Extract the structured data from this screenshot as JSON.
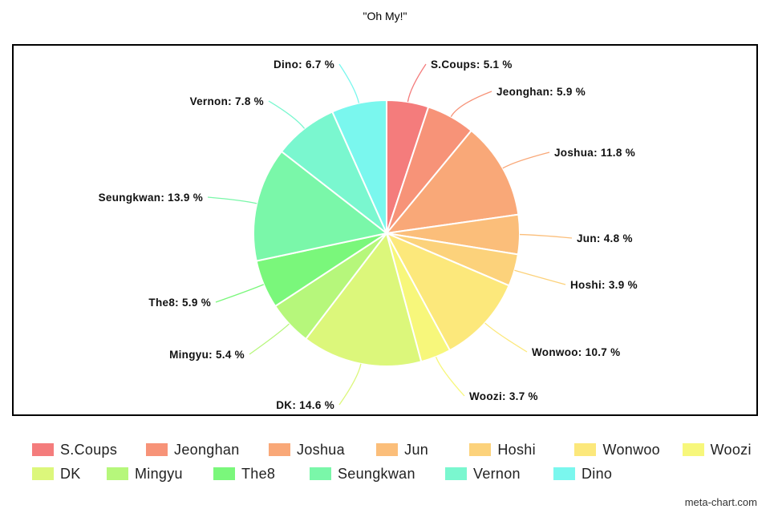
{
  "chart_data": {
    "type": "pie",
    "title": "\"Oh My!\"",
    "slices": [
      {
        "name": "S.Coups",
        "value": 5.1,
        "label": "S.Coups: 5.1 %",
        "color": "#f47c7c"
      },
      {
        "name": "Jeonghan",
        "value": 5.9,
        "label": "Jeonghan: 5.9 %",
        "color": "#f79378"
      },
      {
        "name": "Joshua",
        "value": 11.8,
        "label": "Joshua: 11.8 %",
        "color": "#f9a878"
      },
      {
        "name": "Jun",
        "value": 4.8,
        "label": "Jun: 4.8 %",
        "color": "#fbbe7a"
      },
      {
        "name": "Hoshi",
        "value": 3.9,
        "label": "Hoshi: 3.9 %",
        "color": "#fcd27b"
      },
      {
        "name": "Wonwoo",
        "value": 10.7,
        "label": "Wonwoo: 10.7 %",
        "color": "#fce87b"
      },
      {
        "name": "Woozi",
        "value": 3.7,
        "label": "Woozi: 3.7 %",
        "color": "#f7f77b"
      },
      {
        "name": "DK",
        "value": 14.6,
        "label": "DK: 14.6 %",
        "color": "#dcf77b"
      },
      {
        "name": "Mingyu",
        "value": 5.4,
        "label": "Mingyu: 5.4 %",
        "color": "#b6f77b"
      },
      {
        "name": "The8",
        "value": 5.9,
        "label": "The8: 5.9 %",
        "color": "#7af77b"
      },
      {
        "name": "Seungkwan",
        "value": 13.9,
        "label": "Seungkwan: 13.9 %",
        "color": "#7af7a9"
      },
      {
        "name": "Vernon",
        "value": 7.8,
        "label": "Vernon: 7.8 %",
        "color": "#7af7cf"
      },
      {
        "name": "Dino",
        "value": 6.7,
        "label": "Dino: 6.7 %",
        "color": "#7af7ee"
      }
    ],
    "legend_position": "bottom"
  },
  "watermark": "meta-chart.com"
}
